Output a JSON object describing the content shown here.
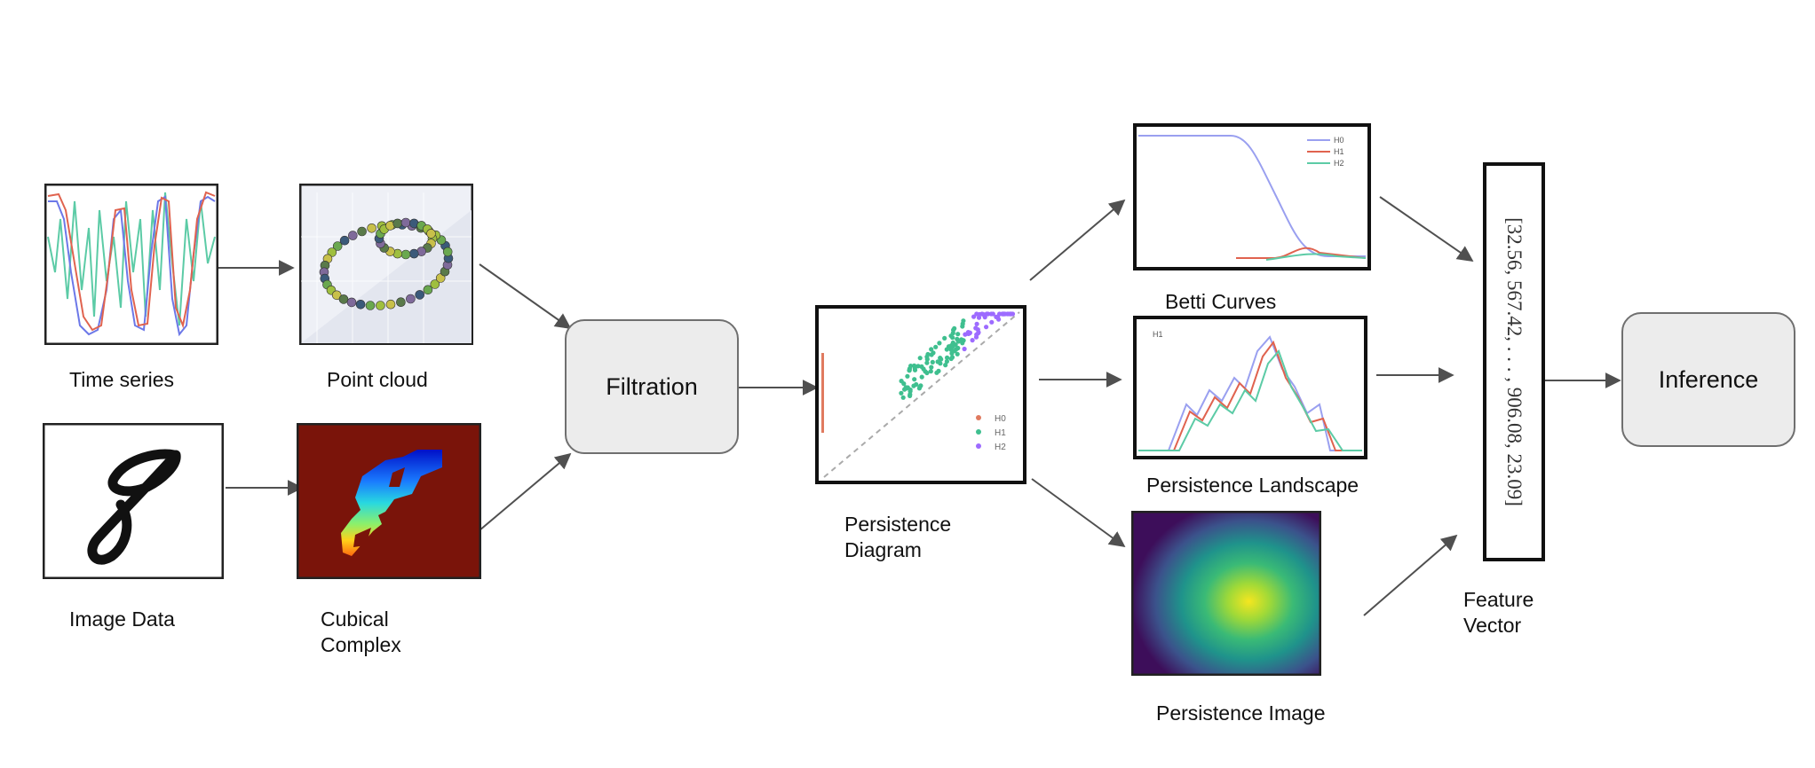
{
  "inputs": {
    "time_series": "Time series",
    "point_cloud": "Point cloud",
    "image_data": "Image Data",
    "cubical_complex": "Cubical\nComplex"
  },
  "filtration": "Filtration",
  "persistence_diagram": {
    "label": "Persistence\nDiagram",
    "legend": [
      "H0",
      "H1",
      "H2"
    ]
  },
  "vectorizations": {
    "betti_curves": "Betti Curves",
    "betti_legend": [
      "H0",
      "H1",
      "H2"
    ],
    "persistence_landscape": "Persistence Landscape",
    "landscape_tag": "H1",
    "persistence_image": "Persistence Image"
  },
  "feature_vector": {
    "label": "Feature\nVector",
    "values": "[32.56, 567.42, . . . , 906.08, 23.09]"
  },
  "inference": "Inference",
  "colors": {
    "h0": "#e07a5f",
    "h1": "#3fbf8f",
    "h2": "#9d6bff",
    "series_red": "#e0634f",
    "series_blue": "#6c78e8",
    "series_green": "#5ccba6",
    "box_fill": "#ececec",
    "box_border": "#6f6f6f",
    "cubical_bg": "#7a140a"
  }
}
